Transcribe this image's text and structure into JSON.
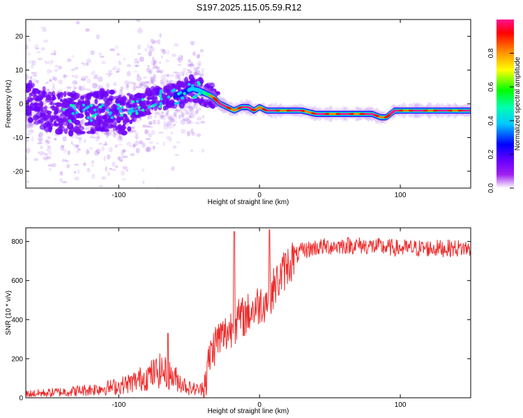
{
  "figure": {
    "title": "S197.2025.115.05.59.R12"
  },
  "colors": {
    "axis": "#000000",
    "snr_line": "#ee2b2b",
    "colormap": [
      "#ffffff",
      "#a020f0",
      "#6a00ff",
      "#0000ff",
      "#00c8ff",
      "#00ffb0",
      "#00ff00",
      "#ffff00",
      "#ff8000",
      "#ff0000",
      "#ff1090"
    ]
  },
  "chart_data": [
    {
      "type": "heatmap",
      "xlabel": "Height of straight line (km)",
      "ylabel": "Frequency (Hz)",
      "xlim": [
        -166,
        150
      ],
      "ylim": [
        -25,
        25
      ],
      "x_ticks": [
        -100,
        0,
        100
      ],
      "y_ticks": [
        -20,
        -10,
        0,
        10,
        20
      ],
      "ridge": {
        "x": [
          -166,
          -150,
          -130,
          -110,
          -95,
          -85,
          -75,
          -65,
          -55,
          -48,
          -43,
          -38,
          -33,
          -28,
          -23,
          -18,
          -13,
          -8,
          -4,
          0,
          5,
          10,
          20,
          30,
          40,
          50,
          60,
          70,
          80,
          86,
          90,
          93,
          96,
          100,
          110,
          120,
          130,
          140,
          150
        ],
        "y": [
          1,
          -2,
          -3,
          -2,
          -3,
          0,
          1,
          2,
          3,
          4.5,
          4,
          3,
          2,
          0,
          -1,
          -2,
          -1,
          -1,
          -2,
          -1,
          -2,
          -2,
          -2,
          -2,
          -3,
          -3,
          -3,
          -3,
          -3,
          -4,
          -4,
          -3,
          -2,
          -2,
          -2,
          -2,
          -2,
          -2,
          -2
        ]
      },
      "colorbar": {
        "label": "Normalized spectral amplitude",
        "range": [
          0,
          1
        ],
        "ticks": [
          0.0,
          0.2,
          0.4,
          0.6,
          0.8
        ]
      }
    },
    {
      "type": "line",
      "xlabel": "Height of straight line (km)",
      "ylabel": "SNR (10 * v/v)",
      "xlim": [
        -166,
        150
      ],
      "ylim": [
        0,
        870
      ],
      "x_ticks": [
        -100,
        0,
        100
      ],
      "y_ticks": [
        0,
        200,
        400,
        600,
        800
      ],
      "series": [
        {
          "x": [
            -166,
            -150,
            -130,
            -110,
            -100,
            -90,
            -80,
            -70,
            -60,
            -50,
            -42,
            -38,
            -35,
            -30,
            -25,
            -20,
            -15,
            -10,
            -5,
            0,
            5,
            10,
            15,
            20,
            25,
            30,
            40,
            50,
            60,
            70,
            80,
            90,
            100,
            110,
            120,
            130,
            140,
            150
          ],
          "values": [
            20,
            25,
            35,
            50,
            60,
            80,
            110,
            140,
            100,
            50,
            40,
            100,
            220,
            300,
            320,
            360,
            400,
            420,
            450,
            480,
            500,
            560,
            620,
            680,
            720,
            750,
            770,
            775,
            780,
            780,
            775,
            770,
            765,
            765,
            765,
            765,
            765,
            765
          ]
        }
      ],
      "peaks": [
        {
          "x": -18,
          "y": 850
        },
        {
          "x": 7,
          "y": 860
        },
        {
          "x": -65,
          "y": 330
        }
      ]
    }
  ]
}
